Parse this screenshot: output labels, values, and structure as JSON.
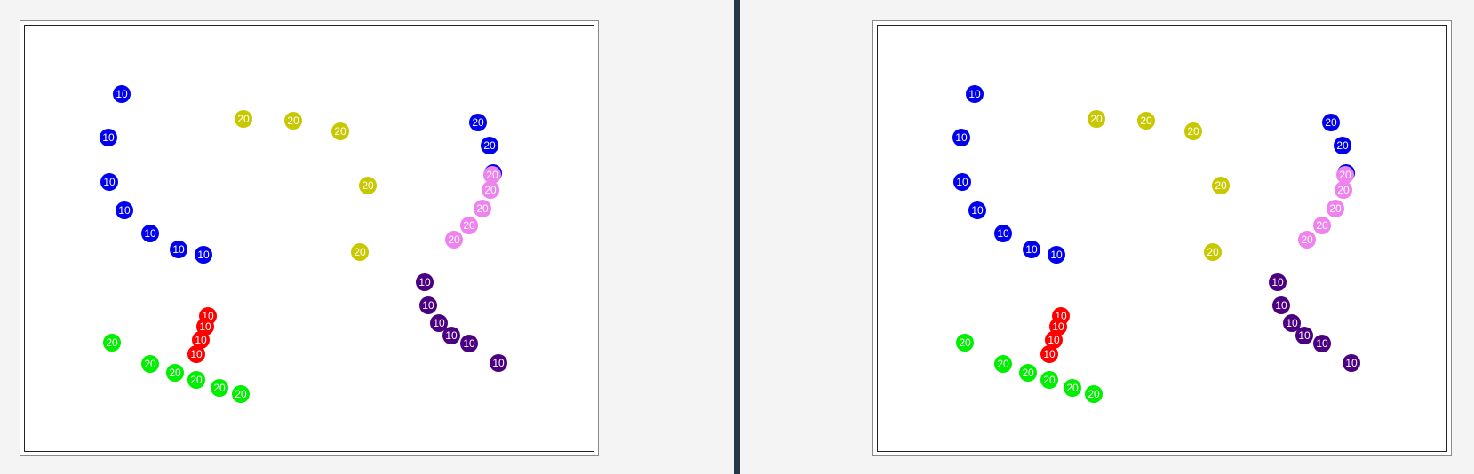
{
  "colors": {
    "blue": "#0000ee",
    "yellow": "#c8c800",
    "pink": "#ee82ee",
    "purple": "#4b0082",
    "red": "#ff0000",
    "green": "#00ee00",
    "divider": "#263747"
  },
  "panels": [
    {
      "name": "left-board",
      "dots": [
        {
          "label": "10",
          "color": "blue"
        },
        {
          "label": "10",
          "color": "blue"
        },
        {
          "label": "10",
          "color": "blue"
        },
        {
          "label": "10",
          "color": "blue"
        },
        {
          "label": "10",
          "color": "blue"
        },
        {
          "label": "10",
          "color": "blue"
        },
        {
          "label": "10",
          "color": "blue"
        },
        {
          "label": "20",
          "color": "yellow"
        },
        {
          "label": "20",
          "color": "yellow"
        },
        {
          "label": "20",
          "color": "yellow"
        },
        {
          "label": "20",
          "color": "yellow"
        },
        {
          "label": "20",
          "color": "yellow"
        },
        {
          "label": "20",
          "color": "blue"
        },
        {
          "label": "20",
          "color": "blue"
        },
        {
          "label": "20",
          "color": "blue"
        },
        {
          "label": "20",
          "color": "pink"
        },
        {
          "label": "20",
          "color": "pink"
        },
        {
          "label": "20",
          "color": "pink"
        },
        {
          "label": "20",
          "color": "pink"
        },
        {
          "label": "20",
          "color": "pink"
        },
        {
          "label": "10",
          "color": "purple"
        },
        {
          "label": "10",
          "color": "purple"
        },
        {
          "label": "10",
          "color": "purple"
        },
        {
          "label": "10",
          "color": "purple"
        },
        {
          "label": "10",
          "color": "purple"
        },
        {
          "label": "10",
          "color": "purple"
        },
        {
          "label": "10",
          "color": "red"
        },
        {
          "label": "10",
          "color": "red"
        },
        {
          "label": "10",
          "color": "red"
        },
        {
          "label": "10",
          "color": "red"
        },
        {
          "label": "20",
          "color": "green"
        },
        {
          "label": "20",
          "color": "green"
        },
        {
          "label": "20",
          "color": "green"
        },
        {
          "label": "20",
          "color": "green"
        },
        {
          "label": "20",
          "color": "green"
        },
        {
          "label": "20",
          "color": "green"
        }
      ]
    },
    {
      "name": "right-board",
      "dots": [
        {
          "label": "10",
          "color": "blue"
        },
        {
          "label": "10",
          "color": "blue"
        },
        {
          "label": "10",
          "color": "blue"
        },
        {
          "label": "10",
          "color": "blue"
        },
        {
          "label": "10",
          "color": "blue"
        },
        {
          "label": "10",
          "color": "blue"
        },
        {
          "label": "10",
          "color": "blue"
        },
        {
          "label": "20",
          "color": "yellow"
        },
        {
          "label": "20",
          "color": "yellow"
        },
        {
          "label": "20",
          "color": "yellow"
        },
        {
          "label": "20",
          "color": "yellow"
        },
        {
          "label": "20",
          "color": "yellow"
        },
        {
          "label": "20",
          "color": "blue"
        },
        {
          "label": "20",
          "color": "blue"
        },
        {
          "label": "20",
          "color": "blue"
        },
        {
          "label": "20",
          "color": "pink"
        },
        {
          "label": "20",
          "color": "pink"
        },
        {
          "label": "20",
          "color": "pink"
        },
        {
          "label": "20",
          "color": "pink"
        },
        {
          "label": "20",
          "color": "pink"
        },
        {
          "label": "10",
          "color": "purple"
        },
        {
          "label": "10",
          "color": "purple"
        },
        {
          "label": "10",
          "color": "purple"
        },
        {
          "label": "10",
          "color": "purple"
        },
        {
          "label": "10",
          "color": "purple"
        },
        {
          "label": "10",
          "color": "purple"
        },
        {
          "label": "10",
          "color": "red"
        },
        {
          "label": "10",
          "color": "red"
        },
        {
          "label": "10",
          "color": "red"
        },
        {
          "label": "10",
          "color": "red"
        },
        {
          "label": "20",
          "color": "green"
        },
        {
          "label": "20",
          "color": "green"
        },
        {
          "label": "20",
          "color": "green"
        },
        {
          "label": "20",
          "color": "green"
        },
        {
          "label": "20",
          "color": "green"
        },
        {
          "label": "20",
          "color": "green"
        }
      ]
    }
  ]
}
